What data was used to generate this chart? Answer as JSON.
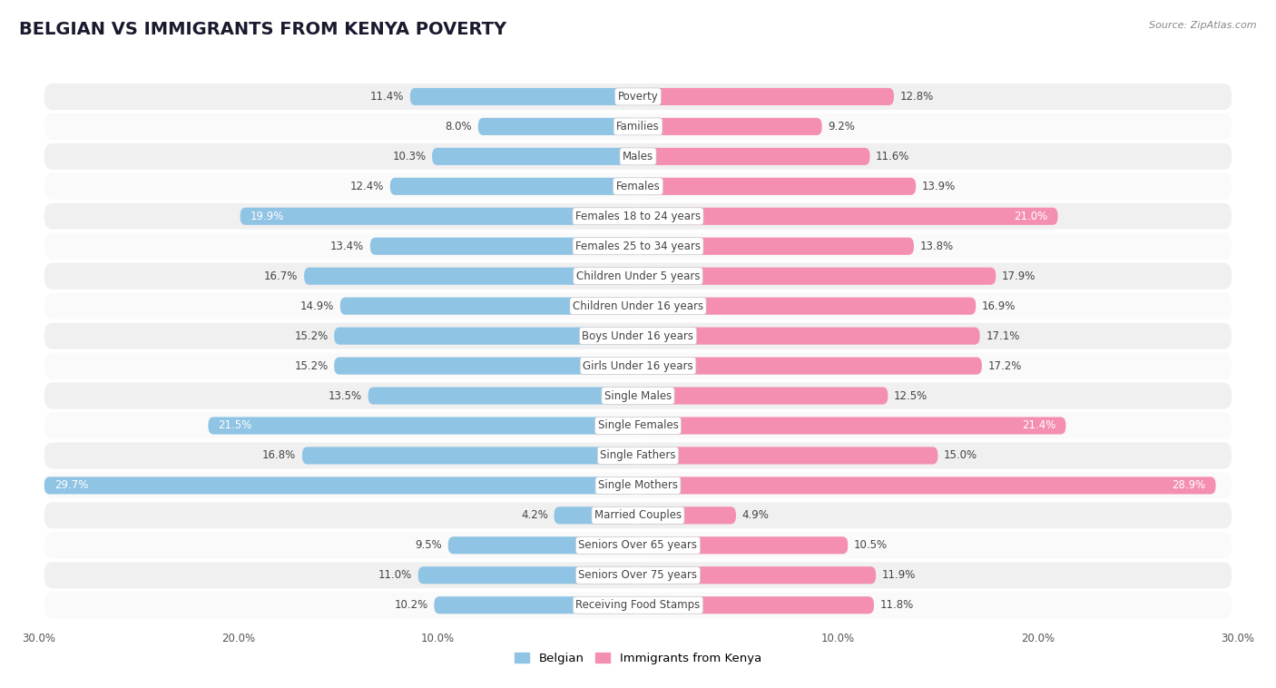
{
  "title": "BELGIAN VS IMMIGRANTS FROM KENYA POVERTY",
  "source": "Source: ZipAtlas.com",
  "categories": [
    "Poverty",
    "Families",
    "Males",
    "Females",
    "Females 18 to 24 years",
    "Females 25 to 34 years",
    "Children Under 5 years",
    "Children Under 16 years",
    "Boys Under 16 years",
    "Girls Under 16 years",
    "Single Males",
    "Single Females",
    "Single Fathers",
    "Single Mothers",
    "Married Couples",
    "Seniors Over 65 years",
    "Seniors Over 75 years",
    "Receiving Food Stamps"
  ],
  "belgian": [
    11.4,
    8.0,
    10.3,
    12.4,
    19.9,
    13.4,
    16.7,
    14.9,
    15.2,
    15.2,
    13.5,
    21.5,
    16.8,
    29.7,
    4.2,
    9.5,
    11.0,
    10.2
  ],
  "kenya": [
    12.8,
    9.2,
    11.6,
    13.9,
    21.0,
    13.8,
    17.9,
    16.9,
    17.1,
    17.2,
    12.5,
    21.4,
    15.0,
    28.9,
    4.9,
    10.5,
    11.9,
    11.8
  ],
  "belgian_color": "#90C4E4",
  "kenya_color": "#F48FB1",
  "bar_height": 0.58,
  "xlim": 30.0,
  "bg_color": "#ffffff",
  "row_color_odd": "#f0f0f0",
  "row_color_even": "#fafafa",
  "legend_belgian": "Belgian",
  "legend_kenya": "Immigrants from Kenya",
  "title_fontsize": 14,
  "label_fontsize": 8.5,
  "value_fontsize": 8.5,
  "inside_label_threshold": 18.0,
  "inside_kenya_threshold": 20.5
}
